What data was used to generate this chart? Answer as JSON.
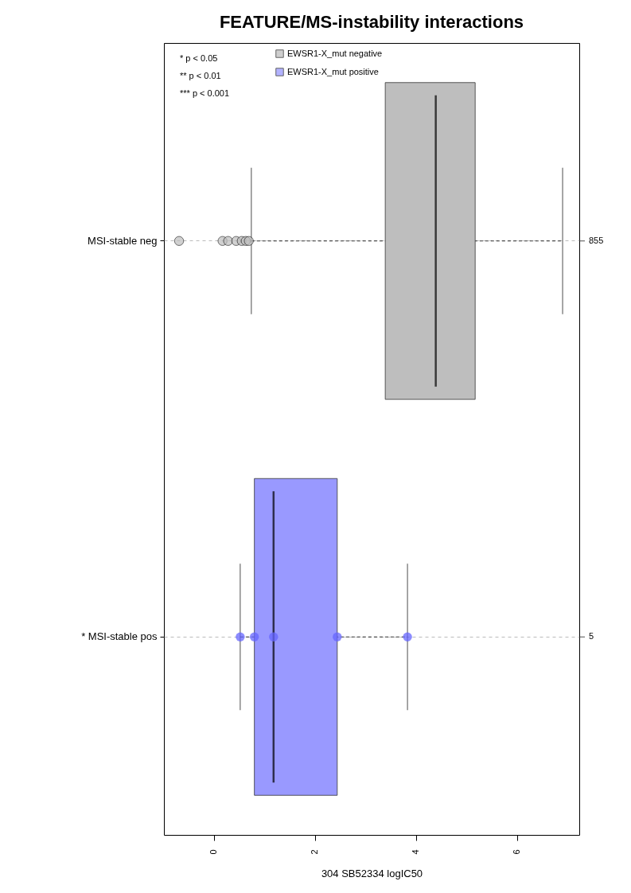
{
  "chart_data": {
    "type": "box",
    "orientation": "horizontal",
    "title": "FEATURE/MS-instability interactions",
    "xlabel": "304 SB52334 logIC50",
    "categories": [
      "MSI-stable neg",
      "* MSI-stable pos"
    ],
    "y2_categories": [
      "855",
      "5"
    ],
    "xlim": [
      -0.99,
      7.23
    ],
    "xticks": [
      0,
      2,
      4,
      6
    ],
    "series": [
      {
        "name": "EWSR1-X_mut negative",
        "color": "#bebebe",
        "boxes": [
          {
            "low": 0.74,
            "q1": 3.39,
            "median": 4.39,
            "q3": 5.17,
            "high": 6.9,
            "outliers": [
              -0.69,
              0.17,
              0.28,
              0.44,
              0.55,
              0.63,
              0.69
            ]
          },
          null
        ]
      },
      {
        "name": "EWSR1-X_mut positive",
        "color": "#9999ff",
        "boxes": [
          null,
          {
            "low": 0.52,
            "q1": 0.8,
            "median": 1.18,
            "q3": 2.44,
            "high": 3.83
          }
        ]
      },
      {
        "type": "scatter",
        "color": "#6666ff",
        "x": [
          "* MSI-stable pos",
          "* MSI-stable pos",
          "* MSI-stable pos",
          "* MSI-stable pos",
          "* MSI-stable pos"
        ],
        "values": [
          0.52,
          0.8,
          1.18,
          2.44,
          3.83
        ]
      }
    ],
    "annotations": [
      "* p < 0.05",
      "** p < 0.01",
      "*** p < 0.001"
    ],
    "grid": "y",
    "legend": "top left",
    "marker": "circle"
  }
}
